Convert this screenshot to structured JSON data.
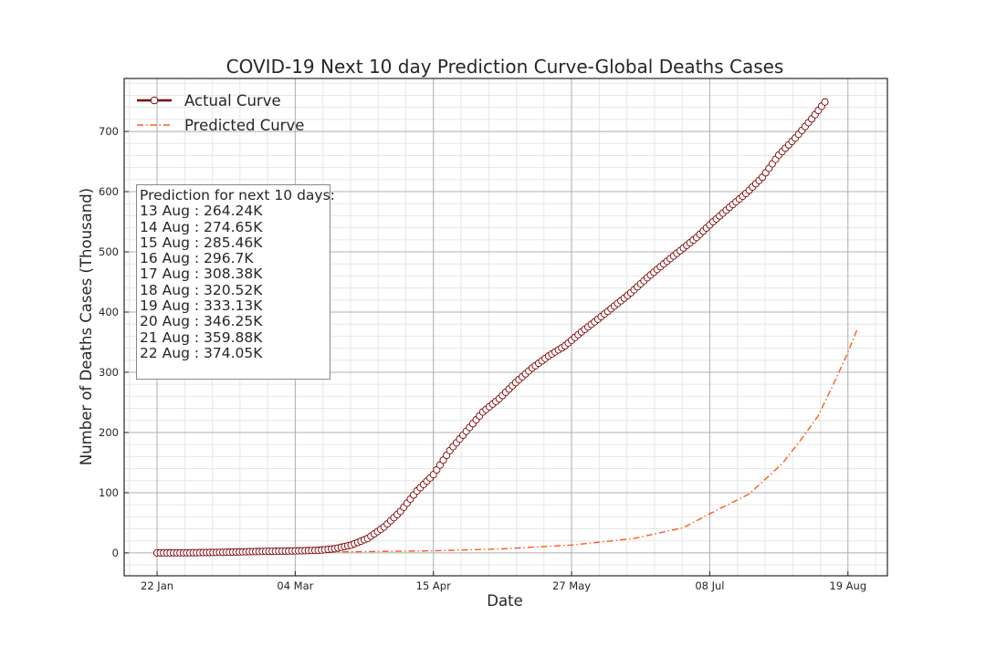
{
  "chart_data": {
    "type": "line",
    "title": "COVID-19 Next 10 day Prediction Curve-Global Deaths Cases",
    "xlabel": "Date",
    "ylabel": "Number of Deaths Cases (Thousand)",
    "x_tick_labels": [
      "22 Jan",
      "04 Mar",
      "15 Apr",
      "27 May",
      "08 Jul",
      "19 Aug"
    ],
    "y_ticks": [
      0,
      100,
      200,
      300,
      400,
      500,
      600,
      700
    ],
    "xlim": [
      "2020-01-12",
      "2020-08-31"
    ],
    "ylim": [
      -38,
      788
    ],
    "grid": true,
    "legend_position": "top-left",
    "series": [
      {
        "name": "Actual Curve",
        "color": "#7b0000",
        "marker": "open-circle",
        "x": [
          "2020-01-22",
          "2020-02-01",
          "2020-02-11",
          "2020-02-21",
          "2020-03-01",
          "2020-03-11",
          "2020-03-16",
          "2020-03-21",
          "2020-03-26",
          "2020-03-31",
          "2020-04-05",
          "2020-04-10",
          "2020-04-15",
          "2020-04-20",
          "2020-04-25",
          "2020-04-30",
          "2020-05-05",
          "2020-05-10",
          "2020-05-15",
          "2020-05-20",
          "2020-05-25",
          "2020-05-30",
          "2020-06-04",
          "2020-06-09",
          "2020-06-14",
          "2020-06-19",
          "2020-06-24",
          "2020-06-29",
          "2020-07-04",
          "2020-07-09",
          "2020-07-14",
          "2020-07-19",
          "2020-07-24",
          "2020-07-29",
          "2020-08-03",
          "2020-08-08",
          "2020-08-12"
        ],
        "y": [
          0.02,
          0.26,
          1.0,
          2.3,
          3.0,
          4.3,
          7.0,
          13.0,
          24.0,
          43.0,
          69.0,
          103.0,
          130.0,
          170.0,
          202.0,
          234.0,
          256.0,
          283.0,
          307.0,
          327.0,
          344.0,
          367.0,
          388.0,
          410.0,
          432.0,
          457.0,
          480.0,
          502.0,
          524.0,
          550.0,
          574.0,
          597.0,
          624.0,
          661.0,
          689.0,
          721.0,
          749.0
        ]
      },
      {
        "name": "Predicted Curve",
        "color": "#ff5a1f",
        "style": "dash-dot",
        "x": [
          "2020-01-22",
          "2020-02-22",
          "2020-03-22",
          "2020-04-15",
          "2020-05-05",
          "2020-05-27",
          "2020-06-15",
          "2020-06-30",
          "2020-07-08",
          "2020-07-20",
          "2020-07-30",
          "2020-08-05",
          "2020-08-10",
          "2020-08-15",
          "2020-08-19",
          "2020-08-22"
        ],
        "y": [
          0.5,
          1.0,
          2.0,
          3.5,
          6.5,
          13.0,
          24.0,
          42.0,
          65.0,
          98.0,
          148.0,
          190.0,
          228.0,
          285.0,
          333.0,
          374.05
        ]
      }
    ],
    "annotation": {
      "heading": "Prediction for next 10 days:",
      "lines": [
        "13 Aug : 264.24K",
        "14 Aug : 274.65K",
        "15 Aug : 285.46K",
        "16 Aug : 296.7K",
        "17 Aug : 308.38K",
        "18 Aug : 320.52K",
        "19 Aug : 333.13K",
        "20 Aug : 346.25K",
        "21 Aug : 359.88K",
        "22 Aug : 374.05K"
      ]
    }
  }
}
